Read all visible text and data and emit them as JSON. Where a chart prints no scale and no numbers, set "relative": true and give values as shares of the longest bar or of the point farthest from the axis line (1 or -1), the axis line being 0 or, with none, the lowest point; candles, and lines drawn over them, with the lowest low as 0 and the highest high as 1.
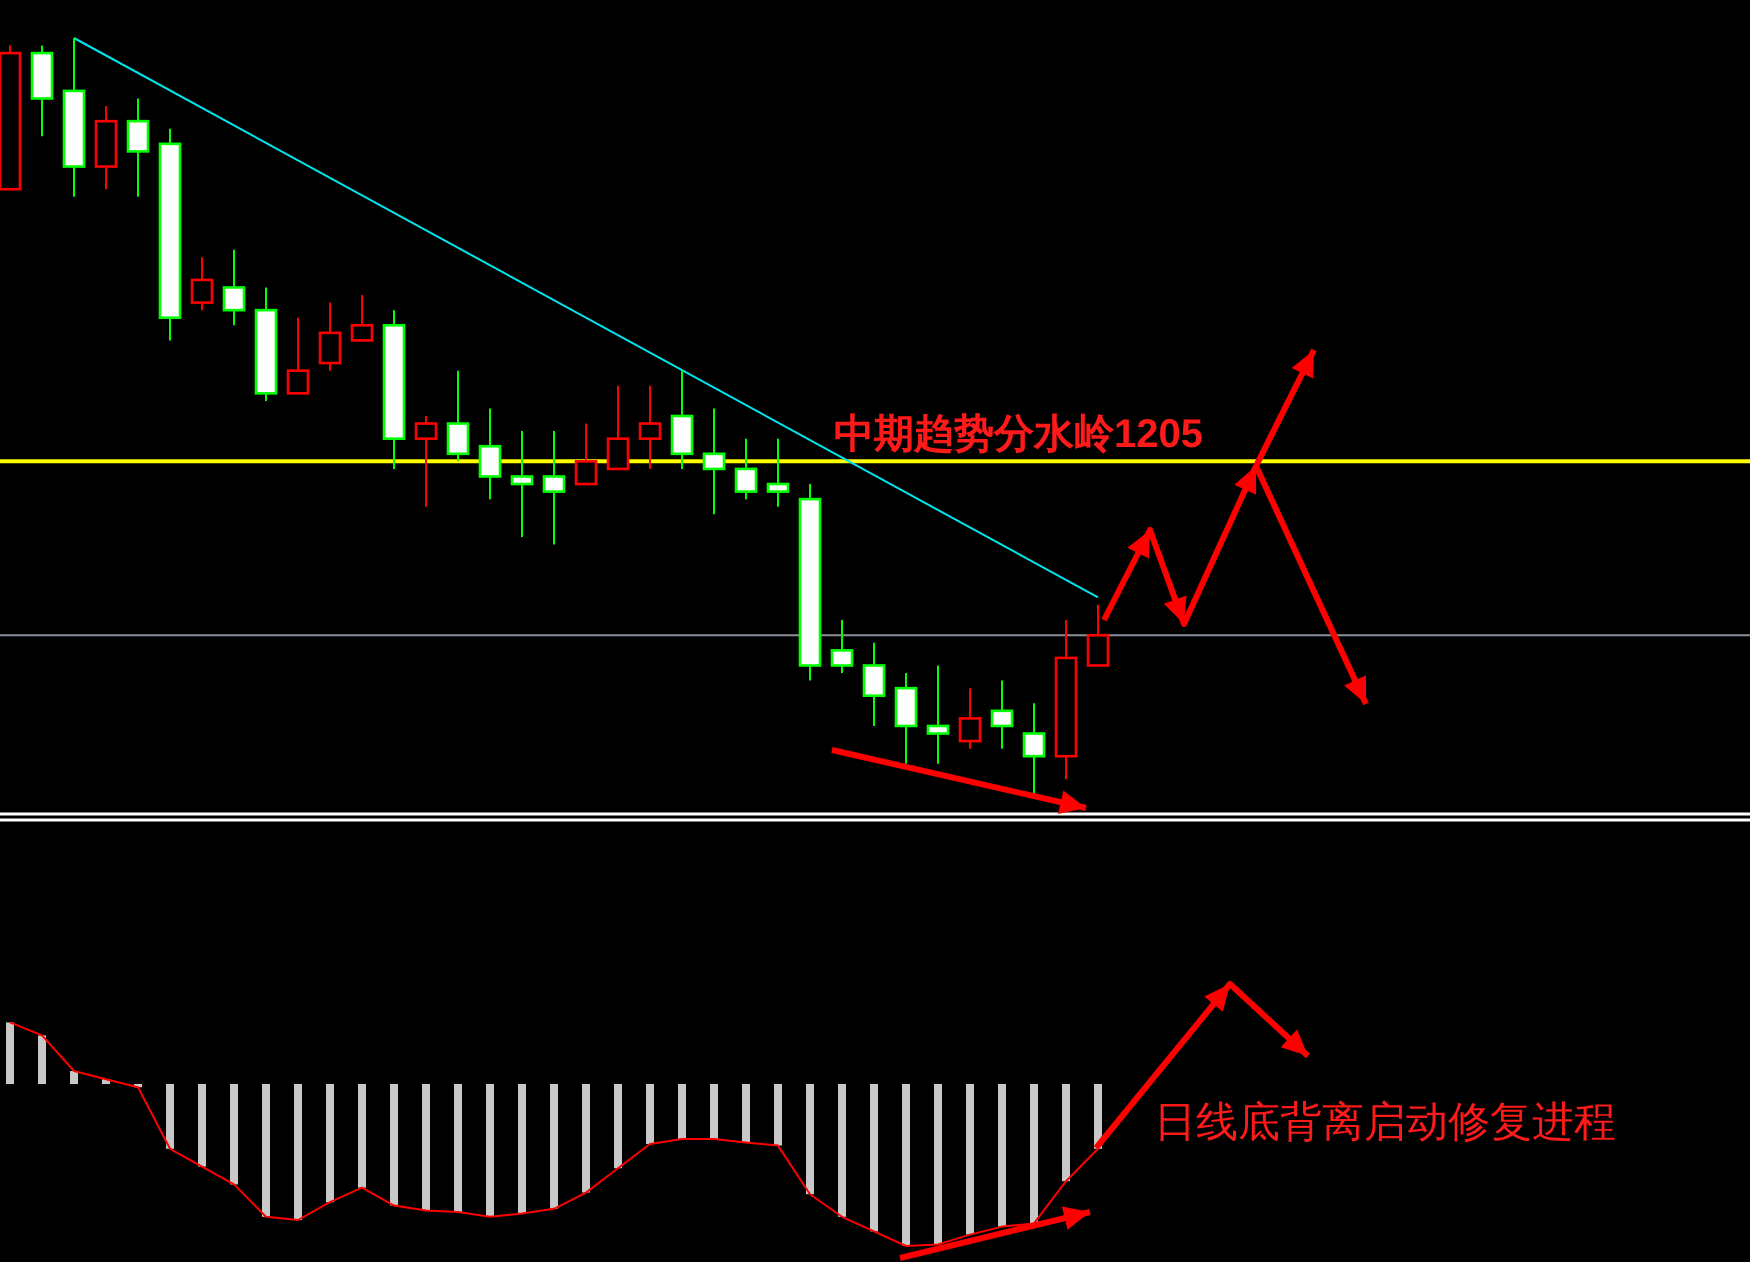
{
  "chart_data": [
    {
      "type": "candlestick",
      "relative": true,
      "categories": [
        null,
        null,
        null,
        null,
        null,
        null,
        null,
        null,
        null,
        null,
        null,
        null,
        null,
        null,
        null,
        null,
        null,
        null,
        null,
        null,
        null,
        null,
        null,
        null,
        null,
        null,
        null,
        null,
        null,
        null,
        null,
        null,
        null,
        null,
        null
      ],
      "ohlc": [
        [
          0.8,
          0.99,
          0.8,
          0.98
        ],
        [
          0.98,
          0.99,
          0.87,
          0.92
        ],
        [
          0.93,
          1.0,
          0.79,
          0.83
        ],
        [
          0.83,
          0.91,
          0.8,
          0.89
        ],
        [
          0.89,
          0.92,
          0.79,
          0.85
        ],
        [
          0.86,
          0.88,
          0.6,
          0.63
        ],
        [
          0.65,
          0.71,
          0.64,
          0.68
        ],
        [
          0.67,
          0.72,
          0.62,
          0.64
        ],
        [
          0.64,
          0.67,
          0.52,
          0.53
        ],
        [
          0.53,
          0.63,
          0.53,
          0.56
        ],
        [
          0.57,
          0.65,
          0.56,
          0.61
        ],
        [
          0.6,
          0.66,
          0.6,
          0.62
        ],
        [
          0.62,
          0.64,
          0.43,
          0.47
        ],
        [
          0.47,
          0.5,
          0.38,
          0.49
        ],
        [
          0.49,
          0.56,
          0.44,
          0.45
        ],
        [
          0.46,
          0.51,
          0.39,
          0.42
        ],
        [
          0.42,
          0.48,
          0.34,
          0.41
        ],
        [
          0.42,
          0.48,
          0.33,
          0.4
        ],
        [
          0.41,
          0.49,
          0.41,
          0.44
        ],
        [
          0.43,
          0.54,
          0.43,
          0.47
        ],
        [
          0.47,
          0.54,
          0.43,
          0.49
        ],
        [
          0.5,
          0.56,
          0.43,
          0.45
        ],
        [
          0.45,
          0.51,
          0.37,
          0.43
        ],
        [
          0.43,
          0.47,
          0.39,
          0.4
        ],
        [
          0.41,
          0.47,
          0.38,
          0.4
        ],
        [
          0.39,
          0.41,
          0.15,
          0.17
        ],
        [
          0.19,
          0.23,
          0.16,
          0.17
        ],
        [
          0.17,
          0.2,
          0.09,
          0.13
        ],
        [
          0.14,
          0.16,
          0.04,
          0.09
        ],
        [
          0.09,
          0.17,
          0.04,
          0.08
        ],
        [
          0.07,
          0.14,
          0.06,
          0.1
        ],
        [
          0.11,
          0.15,
          0.06,
          0.09
        ],
        [
          0.08,
          0.12,
          0.0,
          0.05
        ],
        [
          0.05,
          0.23,
          0.02,
          0.18
        ],
        [
          0.17,
          0.25,
          0.17,
          0.21
        ]
      ],
      "series": [
        {
          "type": "line",
          "color": "#00e5ee",
          "values": [
            null,
            null,
            1.0,
            null,
            null,
            null,
            null,
            null,
            null,
            null,
            null,
            null,
            null,
            null,
            null,
            null,
            null,
            null,
            null,
            null,
            null,
            null,
            null,
            null,
            null,
            null,
            null,
            null,
            null,
            null,
            null,
            null,
            null,
            null,
            0.26
          ]
        }
      ],
      "ref_lines": [
        {
          "axis": "y",
          "value": 0.44,
          "label": "中期趋势分水岭1205",
          "color": "#ffff00"
        },
        {
          "axis": "y",
          "value": 0.21,
          "color": "#8a9099"
        }
      ]
    },
    {
      "type": "bar",
      "relative": true,
      "categories": [
        null,
        null,
        null,
        null,
        null,
        null,
        null,
        null,
        null,
        null,
        null,
        null,
        null,
        null,
        null,
        null,
        null,
        null,
        null,
        null,
        null,
        null,
        null,
        null,
        null,
        null,
        null,
        null,
        null,
        null,
        null,
        null,
        null,
        null,
        null
      ],
      "color": "#c8c8c8",
      "values": [
        0.38,
        0.3,
        0.08,
        0.03,
        -0.02,
        -0.4,
        -0.51,
        -0.62,
        -0.82,
        -0.84,
        -0.73,
        -0.64,
        -0.75,
        -0.78,
        -0.79,
        -0.82,
        -0.8,
        -0.77,
        -0.67,
        -0.52,
        -0.37,
        -0.34,
        -0.34,
        -0.36,
        -0.38,
        -0.68,
        -0.82,
        -0.91,
        -1,
        -0.99,
        -0.93,
        -0.88,
        -0.86,
        -0.6,
        -0.4
      ],
      "annotations": [
        "日线底背离启动修复进程"
      ]
    }
  ]
}
